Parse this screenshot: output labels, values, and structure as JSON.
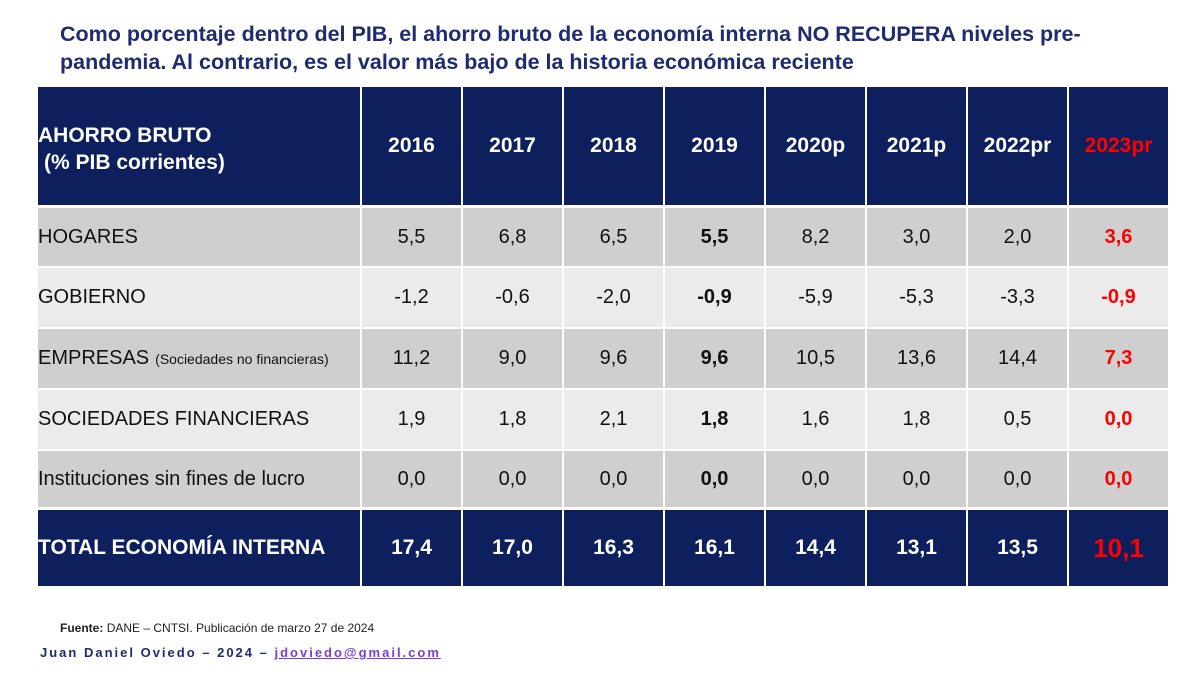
{
  "title": "Como porcentaje dentro del PIB, el ahorro bruto de la economía interna NO RECUPERA niveles pre-pandemia. Al contrario, es el valor más bajo de la historia económica reciente",
  "chart_data": {
    "type": "table",
    "header_label_line1": "AHORRO BRUTO",
    "header_label_line2": "(% PIB corrientes)",
    "columns": [
      "2016",
      "2017",
      "2018",
      "2019",
      "2020p",
      "2021p",
      "2022pr",
      "2023pr"
    ],
    "rows": [
      {
        "label": "HOGARES",
        "sublabel": "",
        "values": [
          "5,5",
          "6,8",
          "6,5",
          "5,5",
          "8,2",
          "3,0",
          "2,0",
          "3,6"
        ]
      },
      {
        "label": "GOBIERNO",
        "sublabel": "",
        "values": [
          "-1,2",
          "-0,6",
          "-2,0",
          "-0,9",
          "-5,9",
          "-5,3",
          "-3,3",
          "-0,9"
        ]
      },
      {
        "label": "EMPRESAS",
        "sublabel": "(Sociedades no financieras)",
        "values": [
          "11,2",
          "9,0",
          "9,6",
          "9,6",
          "10,5",
          "13,6",
          "14,4",
          "7,3"
        ]
      },
      {
        "label": "SOCIEDADES FINANCIERAS",
        "sublabel": "",
        "values": [
          "1,9",
          "1,8",
          "2,1",
          "1,8",
          "1,6",
          "1,8",
          "0,5",
          "0,0"
        ]
      },
      {
        "label": "Instituciones sin fines de lucro",
        "sublabel": "",
        "values": [
          "0,0",
          "0,0",
          "0,0",
          "0,0",
          "0,0",
          "0,0",
          "0,0",
          "0,0"
        ]
      }
    ],
    "total": {
      "label": "TOTAL ECONOMÍA INTERNA",
      "values": [
        "17,4",
        "17,0",
        "16,3",
        "16,1",
        "14,4",
        "13,1",
        "13,5",
        "10,1"
      ]
    }
  },
  "source": {
    "label": "Fuente:",
    "text": "DANE – CNTSI. Publicación de marzo 27 de 2024"
  },
  "author": {
    "text": "Juan Daniel Oviedo – 2024 –",
    "email": "jdoviedo@gmail.com"
  },
  "colors": {
    "navy": "#0d1f5c",
    "title": "#1f2a70",
    "highlight": "#ff0000",
    "email": "#7a3fcf"
  }
}
